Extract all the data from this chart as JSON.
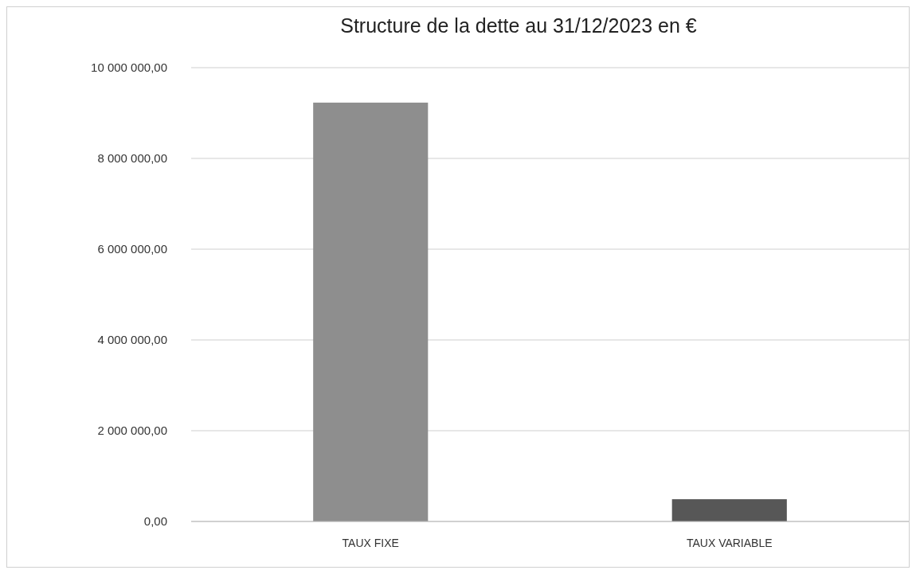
{
  "chart_data": {
    "type": "bar",
    "title": "Structure de la dette au 31/12/2023 en €",
    "categories": [
      "TAUX FIXE",
      "TAUX VARIABLE"
    ],
    "values": [
      9230000,
      490000
    ],
    "colors": [
      "#8e8e8e",
      "#575757"
    ],
    "ylim": [
      0,
      10000000
    ],
    "yticks": [
      {
        "value": 0,
        "label": "0,00"
      },
      {
        "value": 2000000,
        "label": "2 000 000,00"
      },
      {
        "value": 4000000,
        "label": "4 000 000,00"
      },
      {
        "value": 6000000,
        "label": "6 000 000,00"
      },
      {
        "value": 8000000,
        "label": "8 000 000,00"
      },
      {
        "value": 10000000,
        "label": "10 000 000,00"
      }
    ],
    "grid": "y"
  }
}
